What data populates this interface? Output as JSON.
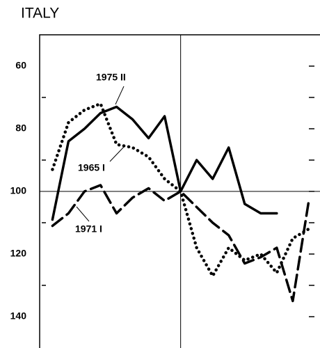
{
  "chart_data": {
    "type": "line",
    "title": "ITALY",
    "x": [
      0,
      1,
      2,
      3,
      4,
      5,
      6,
      7,
      8,
      9,
      10,
      11,
      12,
      13,
      14,
      15,
      16
    ],
    "series": [
      {
        "name": "1975 II",
        "color": "#000000",
        "dash": "solid",
        "values": [
          109,
          84,
          80,
          75,
          73,
          77,
          83,
          76,
          100,
          90,
          96,
          86,
          104,
          107,
          107,
          null,
          null
        ]
      },
      {
        "name": "1965 I",
        "color": "#000000",
        "dash": "dotted",
        "values": [
          93,
          78,
          74,
          72,
          85,
          86,
          89,
          96,
          100,
          118,
          127,
          118,
          122,
          120,
          126,
          115,
          112
        ]
      },
      {
        "name": "1971 I",
        "color": "#000000",
        "dash": "dashed",
        "values": [
          111,
          107,
          100,
          98,
          107,
          102,
          99,
          103,
          100,
          105,
          110,
          114,
          123,
          121,
          118,
          135,
          103
        ]
      }
    ],
    "xlim": [
      -0.8,
      16.7
    ],
    "ylim": [
      150,
      50
    ],
    "yticks": [
      60,
      80,
      100,
      120,
      140
    ],
    "minor_yticks": [
      70,
      90,
      110,
      130
    ],
    "vline": 8,
    "hline": 100
  }
}
